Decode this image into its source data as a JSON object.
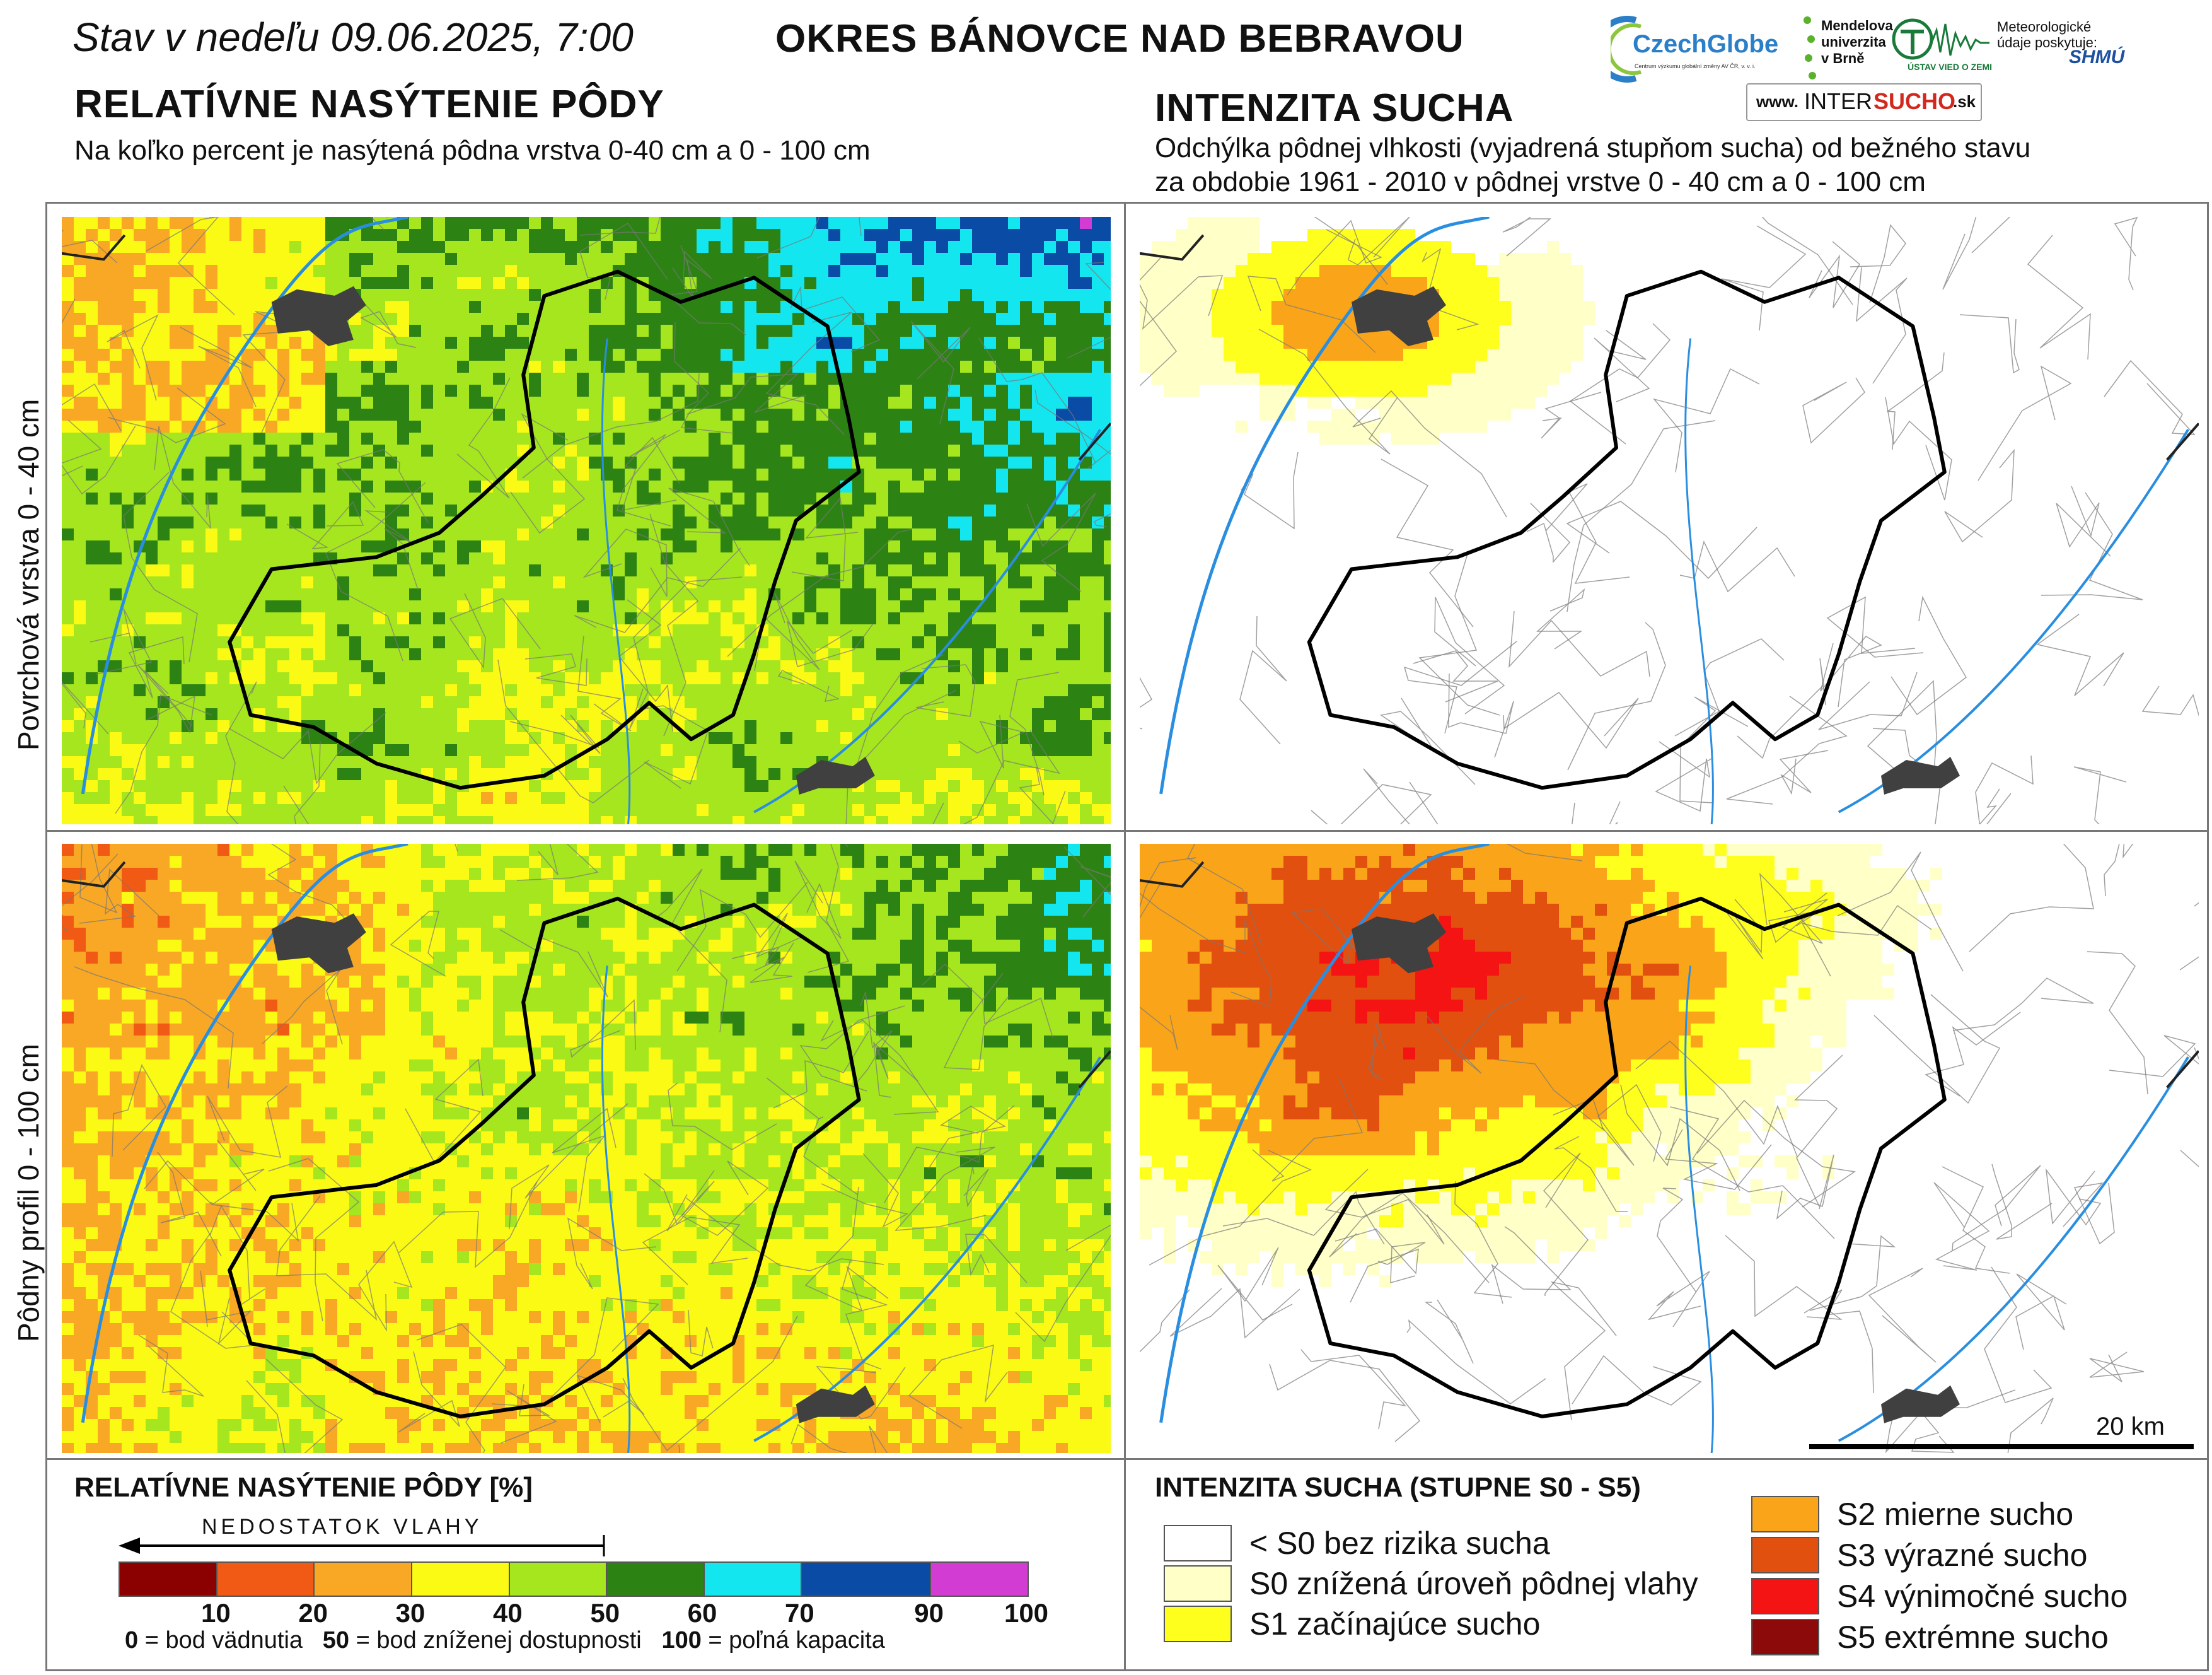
{
  "header": {
    "date_label": "Stav v nedeľu 09.06.2025, 7:00",
    "district": "OKRES  BÁNOVCE NAD BEBRAVOU"
  },
  "left_section": {
    "title": "RELATÍVNE NASÝTENIE PÔDY",
    "subtitle": "Na koľko percent je nasýtená pôdna vrstva 0-40 cm a 0 - 100 cm"
  },
  "right_section": {
    "title": "INTENZITA SUCHA",
    "subtitle_line1": "Odchýlka pôdnej vlhkosti (vyjadrená stupňom sucha) od bežného stavu",
    "subtitle_line2": "za obdobie 1961 - 2010 v pôdnej vrstve 0 - 40 cm a 0 - 100 cm"
  },
  "rows": {
    "top": "Povrchová vrstva 0 - 40 cm",
    "bottom": "Pôdny profil 0 - 100 cm"
  },
  "logos": {
    "czechglobe": "CzechGlobe",
    "czechglobe_sub": "Centrum výzkumu globální změny AV ČR, v. v. i.",
    "mendel": "Mendelova univerzita v Brně",
    "ustav": "ÚSTAV VIED O ZEMI",
    "meteo": "Meteorologické údaje poskytuje:",
    "shmu": "SHMÚ",
    "www": "www.",
    "inter": "INTER",
    "sucho": "SUCHO",
    "sk": ".sk"
  },
  "scale_bar": "20 km",
  "saturation_legend": {
    "title": "RELATÍVNE NASÝTENIE PÔDY [%]",
    "arrow_label": "NEDOSTATOK VLAHY",
    "classes": [
      {
        "color": "#8b0000"
      },
      {
        "color": "#f05a14"
      },
      {
        "color": "#f8a825"
      },
      {
        "color": "#fafa14"
      },
      {
        "color": "#a5e61e"
      },
      {
        "color": "#2d8214"
      },
      {
        "color": "#14e6f0"
      },
      {
        "color": "#0a4ba5"
      },
      {
        "color": "#d23cd2"
      }
    ],
    "ticks": [
      "10",
      "20",
      "30",
      "40",
      "50",
      "60",
      "70",
      "90",
      "100"
    ],
    "notes": [
      {
        "value": "0",
        "text": " = bod vädnutia"
      },
      {
        "value": "50",
        "text": " = bod zníženej dostupnosti"
      },
      {
        "value": "100",
        "text": " = poľná kapacita"
      }
    ]
  },
  "drought_legend": {
    "title": "INTENZITA SUCHA (STUPNE S0 - S5)",
    "classes": [
      {
        "label": "< S0 bez rizika sucha",
        "color": "#ffffff"
      },
      {
        "label": "S0 znížená úroveň pôdnej vlahy",
        "color": "#ffffc8"
      },
      {
        "label": "S1 začínajúce sucho",
        "color": "#ffff1e"
      },
      {
        "label": "S2 mierne sucho",
        "color": "#faa519"
      },
      {
        "label": "S3 výrazné sucho",
        "color": "#e1500f"
      },
      {
        "label": "S4 výnimočné sucho",
        "color": "#f51414"
      },
      {
        "label": "S5 extrémne sucho",
        "color": "#8c0a0a"
      }
    ]
  }
}
